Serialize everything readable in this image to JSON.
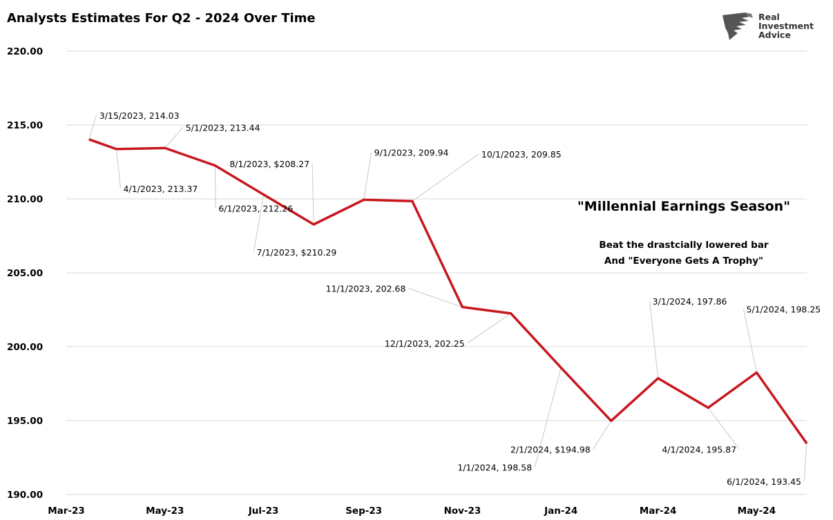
{
  "chart_data": {
    "type": "line",
    "title": "Analysts Estimates For Q2 - 2024 Over Time",
    "xlabel": "",
    "ylabel": "",
    "ylim": [
      190,
      220
    ],
    "xlim": [
      "2023-03-01",
      "2024-06-01"
    ],
    "y_ticks": [
      "190.00",
      "195.00",
      "200.00",
      "205.00",
      "210.00",
      "215.00",
      "220.00"
    ],
    "x_ticks": [
      {
        "date": "2023-03-01",
        "label": "Mar-23"
      },
      {
        "date": "2023-05-01",
        "label": "May-23"
      },
      {
        "date": "2023-07-01",
        "label": "Jul-23"
      },
      {
        "date": "2023-09-01",
        "label": "Sep-23"
      },
      {
        "date": "2023-11-01",
        "label": "Nov-23"
      },
      {
        "date": "2024-01-01",
        "label": "Jan-24"
      },
      {
        "date": "2024-03-01",
        "label": "Mar-24"
      },
      {
        "date": "2024-05-01",
        "label": "May-24"
      }
    ],
    "grid": "horizontal",
    "series": [
      {
        "color": "#c8161d",
        "points": [
          {
            "x": "2023-03-15",
            "y": 214.03,
            "label": "3/15/2023,  214.03"
          },
          {
            "x": "2023-04-01",
            "y": 213.37,
            "label": "4/1/2023,  213.37"
          },
          {
            "x": "2023-05-01",
            "y": 213.44,
            "label": "5/1/2023,  213.44"
          },
          {
            "x": "2023-06-01",
            "y": 212.26,
            "label": "6/1/2023,  212.26"
          },
          {
            "x": "2023-07-01",
            "y": 210.29,
            "label": "7/1/2023, $210.29"
          },
          {
            "x": "2023-08-01",
            "y": 208.27,
            "label": "8/1/2023, $208.27"
          },
          {
            "x": "2023-09-01",
            "y": 209.94,
            "label": "9/1/2023,  209.94"
          },
          {
            "x": "2023-10-01",
            "y": 209.85,
            "label": "10/1/2023,  209.85"
          },
          {
            "x": "2023-11-01",
            "y": 202.68,
            "label": "11/1/2023,  202.68"
          },
          {
            "x": "2023-12-01",
            "y": 202.25,
            "label": "12/1/2023,  202.25"
          },
          {
            "x": "2024-01-01",
            "y": 198.58,
            "label": "1/1/2024,  198.58"
          },
          {
            "x": "2024-02-01",
            "y": 194.98,
            "label": "2/1/2024, $194.98"
          },
          {
            "x": "2024-03-01",
            "y": 197.86,
            "label": "3/1/2024,  197.86"
          },
          {
            "x": "2024-04-01",
            "y": 195.87,
            "label": "4/1/2024,  195.87"
          },
          {
            "x": "2024-05-01",
            "y": 198.25,
            "label": "5/1/2024,  198.25"
          },
          {
            "x": "2024-06-01",
            "y": 193.45,
            "label": "6/1/2024,  193.45"
          }
        ]
      }
    ],
    "annotations": {
      "headline": "\"Millennial Earnings Season\"",
      "line1": "Beat the drastcially lowered bar",
      "line2": "And \"Everyone Gets A Trophy\""
    }
  },
  "logo": {
    "line1": "Real",
    "line2": "Investment",
    "line3": "Advice",
    "color": "#444444"
  }
}
